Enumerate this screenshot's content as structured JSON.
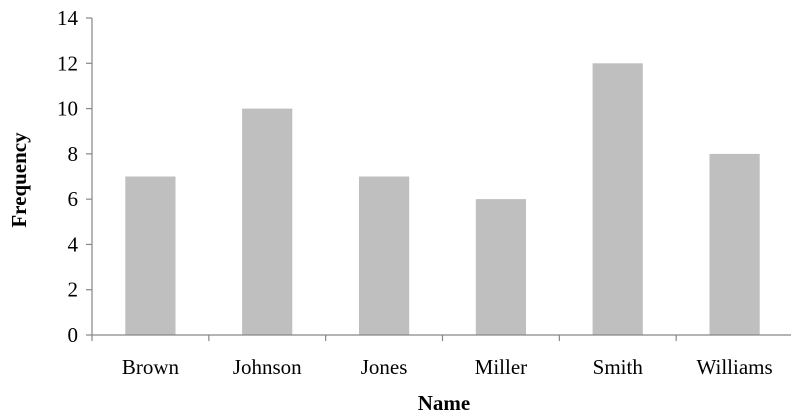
{
  "chart_data": {
    "type": "bar",
    "title": "",
    "xlabel": "Name",
    "ylabel": "Frequency",
    "categories": [
      "Brown",
      "Johnson",
      "Jones",
      "Miller",
      "Smith",
      "Williams"
    ],
    "values": [
      7,
      10,
      7,
      6,
      12,
      8
    ],
    "ylim": [
      0,
      14
    ],
    "yticks": [
      "0",
      "2",
      "4",
      "6",
      "8",
      "10",
      "12",
      "14"
    ],
    "grid": false,
    "legend": "none",
    "bar_color": "#bfbfbf",
    "axis_color": "#868686"
  }
}
